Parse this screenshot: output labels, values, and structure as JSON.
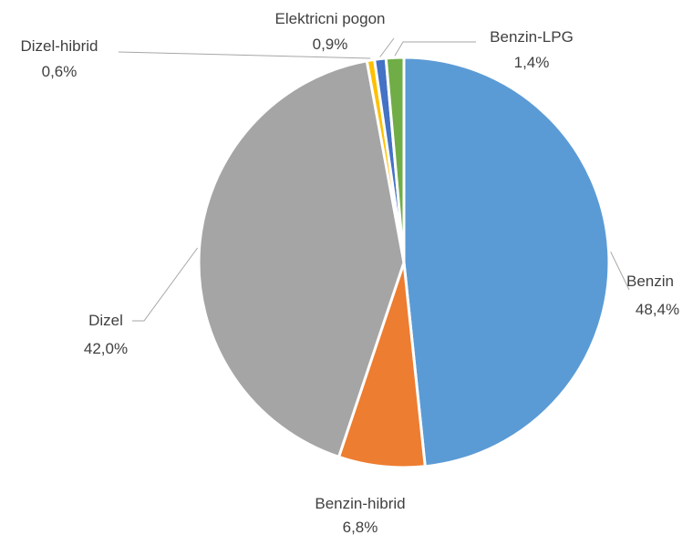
{
  "chart_data": {
    "type": "pie",
    "start_angle_deg": 0,
    "direction": "clockwise",
    "legend": "none",
    "slices": [
      {
        "label": "Benzin",
        "value": 48.4,
        "value_label": "48,4%",
        "color": "#5b9bd5"
      },
      {
        "label": "Benzin-hibrid",
        "value": 6.8,
        "value_label": "6,8%",
        "color": "#ed7d31"
      },
      {
        "label": "Dizel",
        "value": 42.0,
        "value_label": "42,0%",
        "color": "#a5a5a5"
      },
      {
        "label": "Dizel-hibrid",
        "value": 0.6,
        "value_label": "0,6%",
        "color": "#ffc000"
      },
      {
        "label": "Elektricni pogon",
        "value": 0.9,
        "value_label": "0,9%",
        "color": "#4472c4"
      },
      {
        "label": "Benzin-LPG",
        "value": 1.4,
        "value_label": "1,4%",
        "color": "#70ad47"
      }
    ]
  }
}
